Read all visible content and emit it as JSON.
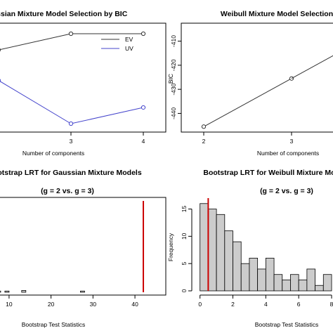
{
  "chart_data": [
    {
      "type": "line",
      "title": "Gaussian Mixture Model Selection by BIC",
      "xlabel": "Number of components",
      "ylabel": "",
      "x": [
        2,
        3,
        4
      ],
      "x_ticks": [
        "3",
        "4"
      ],
      "y_ticks": [],
      "xlim": [
        2,
        4
      ],
      "ylim": [
        0,
        100
      ],
      "series": [
        {
          "name": "EV",
          "color": "#333333",
          "values": [
            82,
            100,
            100
          ]
        },
        {
          "name": "UV",
          "color": "#4444cc",
          "values": [
            48,
            0,
            18
          ]
        }
      ],
      "legend": "top-right",
      "grid": false
    },
    {
      "type": "line",
      "title": "Weibull Mixture Model Selection",
      "xlabel": "Number of components",
      "ylabel": "BIC",
      "x": [
        2,
        3
      ],
      "x_ticks": [
        "2",
        "3"
      ],
      "y_ticks": [
        "-410",
        "-420",
        "-430",
        "-440"
      ],
      "xlim": [
        2,
        4
      ],
      "ylim": [
        -446,
        -404
      ],
      "series": [
        {
          "color": "#333333",
          "values": [
            -445.5,
            -425.5
          ]
        }
      ],
      "grid": false
    },
    {
      "type": "bar",
      "title": "Bootstrap LRT for Gaussian Mixture Models",
      "subtitle": "(g = 2 vs. g = 3)",
      "xlabel": "Bootstrap Test Statistics",
      "ylabel": "",
      "x_ticks": [
        "10",
        "20",
        "30",
        "40"
      ],
      "y_ticks": [],
      "xlim": [
        6.5,
        43
      ],
      "ylim": [
        0,
        75
      ],
      "bin_edges": [
        6,
        7,
        8,
        9,
        10,
        11,
        12,
        13,
        14,
        15,
        16,
        17,
        18,
        19,
        20,
        21,
        22,
        23,
        24,
        25,
        26,
        27,
        28
      ],
      "values": [
        2,
        1,
        0,
        1,
        0,
        0,
        0,
        1.5,
        0,
        0,
        0,
        0,
        0,
        0,
        0,
        0,
        0,
        0,
        0,
        0,
        0,
        1
      ],
      "observed_statistic": 42,
      "observed_color": "#cc0000",
      "grid": false
    },
    {
      "type": "bar",
      "title": "Bootstrap LRT for Weibull Mixture Models",
      "subtitle": "(g = 2 vs. g = 3)",
      "xlabel": "Bootstrap Test Statistics",
      "ylabel": "Frequency",
      "x_ticks": [
        "0",
        "2",
        "4",
        "6",
        "8"
      ],
      "y_ticks": [
        "0",
        "5",
        "10",
        "15"
      ],
      "xlim": [
        -0.2,
        8
      ],
      "ylim": [
        0,
        17
      ],
      "bin_edges": [
        0,
        0.5,
        1,
        1.5,
        2,
        2.5,
        3,
        3.5,
        4,
        4.5,
        5,
        5.5,
        6,
        6.5,
        7,
        7.5,
        8
      ],
      "values": [
        16,
        15,
        14,
        11,
        9,
        5,
        6,
        4,
        6,
        3,
        2,
        3,
        2,
        4,
        1,
        3
      ],
      "observed_statistic": 0.5,
      "observed_color": "#cc0000",
      "grid": false
    }
  ]
}
